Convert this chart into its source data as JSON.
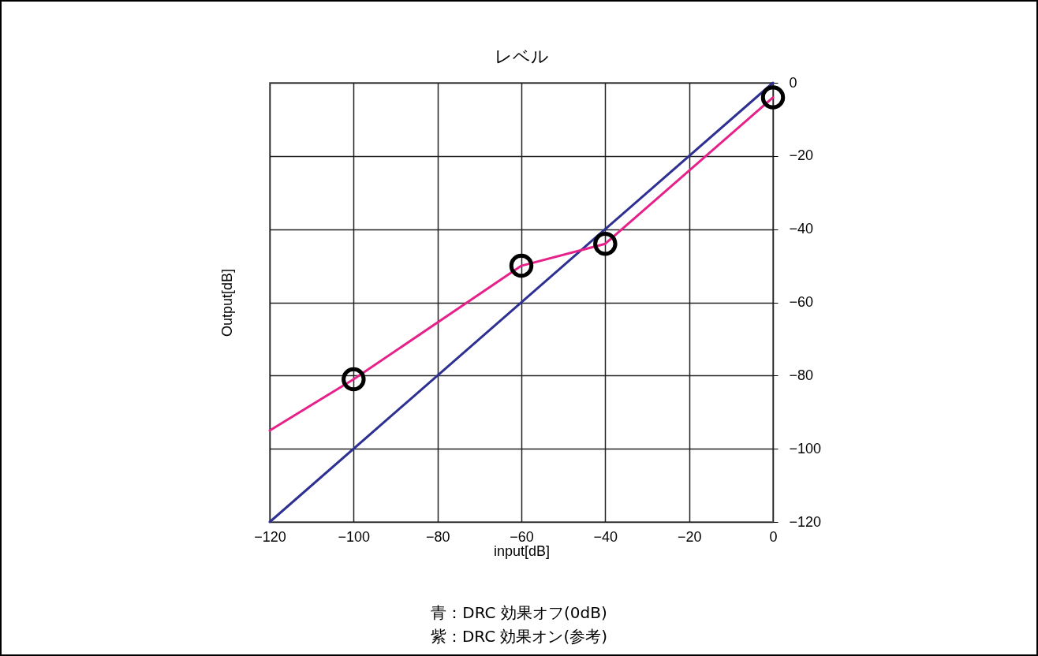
{
  "chart_data": {
    "type": "line",
    "title": "レベル",
    "xlabel": "input[dB]",
    "ylabel": "Output[dB]",
    "xlim": [
      -120,
      0
    ],
    "ylim": [
      -120,
      0
    ],
    "xticks": [
      {
        "value": -120,
        "label": "−120"
      },
      {
        "value": -100,
        "label": "−100"
      },
      {
        "value": -80,
        "label": "−80"
      },
      {
        "value": -60,
        "label": "−60"
      },
      {
        "value": -40,
        "label": "−40"
      },
      {
        "value": -20,
        "label": "−20"
      },
      0
    ],
    "yticks": [
      {
        "value": -120,
        "label": "−120"
      },
      {
        "value": -100,
        "label": "−100"
      },
      {
        "value": -80,
        "label": "−80"
      },
      {
        "value": -60,
        "label": "−60"
      },
      {
        "value": -40,
        "label": "−40"
      },
      {
        "value": -20,
        "label": "−20"
      },
      0
    ],
    "grid": true,
    "series": [
      {
        "color": "#2e3192",
        "x": [
          -120,
          0
        ],
        "values": [
          -120,
          0
        ]
      },
      {
        "color": "#e6218a",
        "x": [
          -120,
          -100,
          -60,
          -40,
          0
        ],
        "values": [
          -95,
          -81,
          -50,
          -44,
          -4
        ]
      },
      {
        "type": "scatter",
        "marker": "circle",
        "color": "#000000",
        "x": [
          -100,
          -60,
          -40,
          0
        ],
        "values": [
          -81,
          -50,
          -44,
          -4
        ]
      }
    ],
    "annotations": [
      "青：DRC 効果オフ(0dB)",
      "紫：DRC 効果オン(参考)"
    ]
  }
}
